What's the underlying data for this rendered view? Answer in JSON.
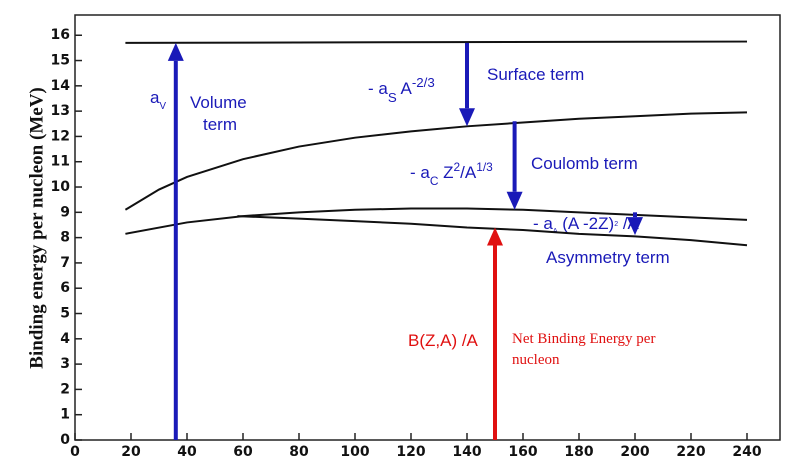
{
  "chart_data": {
    "type": "line",
    "ylabel": "Binding energy per nucleon (MeV)",
    "xlim": [
      0,
      250
    ],
    "ylim": [
      0,
      16.8
    ],
    "xticks": [
      0,
      20,
      40,
      60,
      80,
      100,
      120,
      140,
      160,
      180,
      200,
      220,
      240
    ],
    "yticks": [
      0,
      1,
      2,
      3,
      4,
      5,
      6,
      7,
      8,
      9,
      10,
      11,
      12,
      13,
      14,
      15,
      16
    ],
    "series": [
      {
        "color": "#111111",
        "x": [
          18,
          240
        ],
        "values": [
          15.7,
          15.75
        ]
      },
      {
        "color": "#111111",
        "x": [
          18,
          30,
          40,
          60,
          80,
          100,
          120,
          140,
          160,
          180,
          200,
          220,
          240
        ],
        "values": [
          9.1,
          9.9,
          10.4,
          11.1,
          11.6,
          11.95,
          12.2,
          12.4,
          12.55,
          12.7,
          12.8,
          12.9,
          12.95
        ]
      },
      {
        "color": "#111111",
        "x": [
          18,
          40,
          60,
          80,
          100,
          120,
          140,
          160,
          180,
          200,
          220,
          240
        ],
        "values": [
          8.15,
          8.6,
          8.85,
          9.0,
          9.1,
          9.15,
          9.15,
          9.1,
          9.0,
          8.9,
          8.8,
          8.7
        ]
      },
      {
        "color": "#111111",
        "x": [
          58,
          80,
          100,
          120,
          140,
          160,
          180,
          200,
          220,
          240
        ],
        "values": [
          8.85,
          8.75,
          8.65,
          8.55,
          8.4,
          8.3,
          8.15,
          8.05,
          7.9,
          7.7
        ]
      }
    ],
    "arrows": [
      {
        "x": 36,
        "from": 0,
        "to": 15.7,
        "color": "#1a1ab8"
      },
      {
        "x": 140,
        "from": 15.7,
        "to": 12.4,
        "color": "#1a1ab8"
      },
      {
        "x": 157,
        "from": 12.6,
        "to": 9.1,
        "color": "#1a1ab8"
      },
      {
        "x": 200,
        "from": 9.0,
        "to": 8.1,
        "color": "#1a1ab8"
      },
      {
        "x": 150,
        "from": 0,
        "to": 8.4,
        "color": "#e01010"
      }
    ],
    "annotations": {
      "volume_coef": [
        {
          "t": "a"
        },
        {
          "t": "V",
          "pos": "sub"
        }
      ],
      "volume": [
        "Volume",
        "term"
      ],
      "surface_formula": [
        {
          "t": "- a"
        },
        {
          "t": "S",
          "pos": "sub"
        },
        {
          "t": " A"
        },
        {
          "t": "-2/3",
          "pos": "sup"
        }
      ],
      "surface": "Surface term",
      "coulomb_formula": [
        {
          "t": "- a"
        },
        {
          "t": "C",
          "pos": "sub"
        },
        {
          "t": " Z"
        },
        {
          "t": "2",
          "pos": "sup"
        },
        {
          "t": "/A"
        },
        {
          "t": "1/3",
          "pos": "sup"
        }
      ],
      "coulomb": "Coulomb term",
      "asym_formula": [
        {
          "t": "- a"
        },
        {
          "t": "A",
          "pos": "sub"
        },
        {
          "t": " (A -2Z)"
        },
        {
          "t": "2",
          "pos": "sup"
        },
        {
          "t": " /A"
        }
      ],
      "asymmetry": "Asymmetry term",
      "net_formula": "B(Z,A) /A",
      "net": [
        "Net Binding Energy per",
        "nucleon"
      ]
    }
  }
}
